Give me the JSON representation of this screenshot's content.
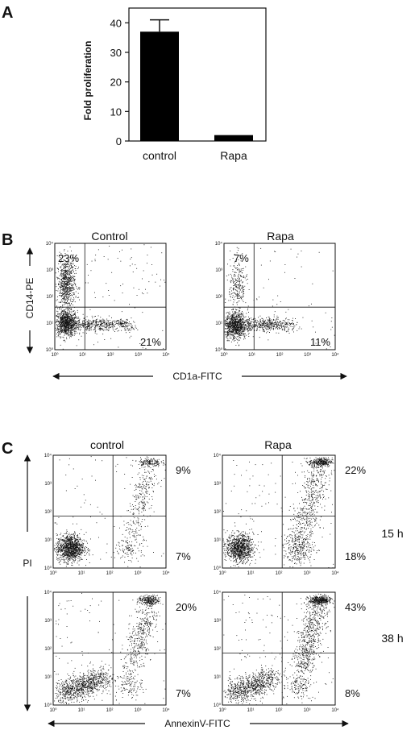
{
  "panels": {
    "A": "A",
    "B": "B",
    "C": "C"
  },
  "chart_data": [
    {
      "type": "bar",
      "panel": "A",
      "categories": [
        "control",
        "Rapa"
      ],
      "values": [
        37,
        2
      ],
      "errors": [
        4,
        0
      ],
      "ylabel": "Fold proliferation",
      "ylim": [
        0,
        45
      ],
      "yticks": [
        0,
        10,
        20,
        30,
        40
      ],
      "color": "#000000"
    },
    {
      "type": "scatter",
      "panel": "B",
      "xlabel": "CD1a-FITC",
      "ylabel": "CD14-PE",
      "log_scale": true,
      "axis_ticks": [
        "10⁰",
        "10¹",
        "10²",
        "10³",
        "10⁴"
      ],
      "plots": [
        {
          "title": "Control",
          "upper_left": "23%",
          "lower_right": "21%"
        },
        {
          "title": "Rapa",
          "upper_left": "7%",
          "lower_right": "11%"
        }
      ]
    },
    {
      "type": "scatter",
      "panel": "C",
      "xlabel": "AnnexinV-FITC",
      "ylabel": "PI",
      "log_scale": true,
      "axis_ticks": [
        "10⁰",
        "10¹",
        "10²",
        "10³",
        "10⁴"
      ],
      "columns": [
        "control",
        "Rapa"
      ],
      "rows": [
        "15 h",
        "38 h"
      ],
      "plots": [
        {
          "condition": "control",
          "time": "15 h",
          "upper_right": "9%",
          "lower_right": "7%"
        },
        {
          "condition": "Rapa",
          "time": "15 h",
          "upper_right": "22%",
          "lower_right": "18%"
        },
        {
          "condition": "control",
          "time": "38 h",
          "upper_right": "20%",
          "lower_right": "7%"
        },
        {
          "condition": "Rapa",
          "time": "38 h",
          "upper_right": "43%",
          "lower_right": "8%"
        }
      ]
    }
  ]
}
